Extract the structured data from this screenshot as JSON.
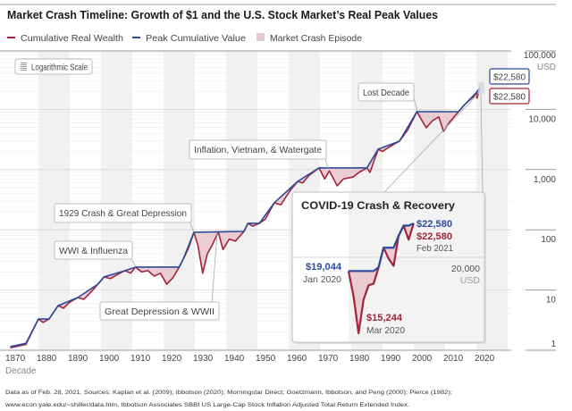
{
  "title": "Market Crash Timeline: Growth of $1 and the U.S. Stock Market’s Real Peak Values",
  "legend": [
    {
      "label": "Cumulative Real Wealth",
      "color": "#a3233a",
      "type": "line"
    },
    {
      "label": "Peak Cumulative Value",
      "color": "#2b4a9b",
      "type": "line"
    },
    {
      "label": "Market Crash Episode",
      "color": "#e8c6cd",
      "type": "swatch"
    }
  ],
  "scale_badge": {
    "label": "Logarithmic Scale",
    "icon": "lines-icon"
  },
  "annotations": {
    "lost_decade": "Lost Decade",
    "inflation": "Inflation, Vietnam, & Watergate",
    "crash_1929": "1929 Crash & Great Depression",
    "wwi": "WWI & Influenza",
    "depression_wwii": "Great Depression & WWII"
  },
  "end_labels": {
    "peak": "$22,580",
    "wealth": "$22,580"
  },
  "inset": {
    "title": "COVID-19 Crash & Recovery",
    "end_peak": "$22,580",
    "end_wealth": "$22,580",
    "end_date": "Feb 2021",
    "start_value": "$19,044",
    "start_date": "Jan 2020",
    "trough_value": "$15,244",
    "trough_date": "Mar 2020",
    "ref_value": "20,000",
    "ref_unit": "USD"
  },
  "footer": [
    "Data as of Feb. 28, 2021. Sources: Kaplan et al. (2009); Ibbotson (2020); Morningstar Direct; Goetzmann, Ibbotson, and Peng (2000); Pierce (1982);",
    "www.econ.yale.edu/~shiller/data.htm, Ibbotson Associates SBBI US Large-Cap Stock Inflation Adjusted Total Return Extended Index."
  ],
  "colors": {
    "wealth": "#a3233a",
    "peak": "#2b4a9b",
    "crash": "#e8c6cd",
    "band": "#f1f1f1"
  },
  "chart_data": {
    "type": "line",
    "title": "Market Crash Timeline: Growth of $1 and the U.S. Stock Market’s Real Peak Values",
    "xlabel": "Decade",
    "ylabel": "USD",
    "y_scale": "log",
    "xlim": [
      1870,
      2030
    ],
    "ylim": [
      1,
      100000
    ],
    "grid": true,
    "legend_position": "top-left",
    "x_ticks": [
      "1870",
      "1880",
      "1890",
      "1900",
      "1910",
      "1920",
      "1930",
      "1940",
      "1950",
      "1960",
      "1970",
      "1980",
      "1990",
      "2000",
      "2010",
      "2020"
    ],
    "y_ticks": [
      {
        "value": 100000,
        "label": "100,000"
      },
      {
        "value": 10000,
        "label": "10,000"
      },
      {
        "value": 1000,
        "label": "1,000"
      },
      {
        "value": 100,
        "label": "100"
      },
      {
        "value": 10,
        "label": "10"
      },
      {
        "value": 1,
        "label": "1"
      }
    ],
    "y_unit_label": "USD",
    "series": [
      {
        "name": "Cumulative Real Wealth",
        "x": [
          1871,
          1876,
          1880,
          1881.5,
          1883.4,
          1886.3,
          1888,
          1890,
          1892.6,
          1894.5,
          1897,
          1899,
          1901,
          1903,
          1906,
          1907.7,
          1909.5,
          1911,
          1913,
          1915,
          1917,
          1919,
          1921,
          1923,
          1925,
          1926.3,
          1928,
          1929.7,
          1931,
          1932.5,
          1934,
          1935.5,
          1937.5,
          1939,
          1941,
          1943,
          1945.7,
          1947,
          1948.5,
          1950.6,
          1952.5,
          1955.4,
          1957.5,
          1960.5,
          1962.9,
          1964.5,
          1966.5,
          1969.7,
          1971.5,
          1973,
          1975.5,
          1977.5,
          1980.5,
          1982.5,
          1985,
          1986,
          1988.6,
          1990,
          1992,
          1995.4,
          1998,
          2001,
          2003,
          2004,
          2006,
          2008,
          2009.5,
          2011.5,
          2014.3,
          2016,
          2017.5,
          2019,
          2020,
          2020.2,
          2021.1
        ],
        "y": [
          1.1,
          1.25,
          3.3,
          2.9,
          3.3,
          5.5,
          5.0,
          6.3,
          7.5,
          7.0,
          9.5,
          12.5,
          16.5,
          15.5,
          19,
          21,
          19,
          24,
          20,
          21,
          17,
          19,
          12.5,
          16,
          24,
          32.6,
          50,
          91,
          55,
          19,
          40,
          55,
          92,
          47,
          70,
          65,
          94,
          128,
          115,
          128,
          150,
          281,
          260,
          450,
          637,
          600,
          800,
          1065,
          700,
          950,
          537,
          700,
          750,
          900,
          1065,
          900,
          2180,
          2000,
          2350,
          2965,
          4500,
          9150,
          6000,
          4950,
          6500,
          7500,
          4320,
          6200,
          9150,
          11620,
          13800,
          16000,
          19044,
          15244,
          22580
        ]
      },
      {
        "name": "Peak Cumulative Value",
        "x": [
          1871,
          1876,
          1880,
          1883.4,
          1886.3,
          1892.6,
          1899,
          1901,
          1907.7,
          1911,
          1925,
          1926.3,
          1929.7,
          1945.7,
          1947,
          1950.6,
          1955.4,
          1962.9,
          1969.7,
          1985,
          1988.6,
          1995.4,
          2001,
          2014.3,
          2016,
          2020,
          2021.1
        ],
        "y": [
          1.15,
          1.3,
          3.3,
          3.3,
          5.5,
          7.5,
          12.5,
          16.5,
          21,
          24,
          24,
          32.6,
          91,
          94,
          128,
          128,
          281,
          637,
          1065,
          1065,
          2180,
          2965,
          9150,
          9150,
          11620,
          19044,
          22580
        ]
      }
    ],
    "crash_episodes": [
      "WWI & Influenza",
      "1929 Crash & Great Depression",
      "Great Depression & WWII",
      "Inflation, Vietnam, & Watergate",
      "Lost Decade",
      "COVID-19 Crash & Recovery"
    ],
    "inset": {
      "title": "COVID-19 Crash & Recovery",
      "months": [
        "Jan 2020",
        "Feb 2020",
        "Mar 2020",
        "Apr 2020",
        "May 2020",
        "Jun 2020",
        "Jul 2020",
        "Aug 2020",
        "Sep 2020",
        "Oct 2020",
        "Nov 2020",
        "Dec 2020",
        "Jan 2021",
        "Feb 2021"
      ],
      "wealth": [
        19044,
        17400,
        15244,
        17200,
        18100,
        18200,
        19300,
        20700,
        19900,
        19400,
        21600,
        22400,
        21300,
        22580
      ],
      "peak": [
        19044,
        19044,
        19044,
        19044,
        19044,
        19044,
        19300,
        20700,
        20700,
        20700,
        21600,
        22400,
        22400,
        22580
      ],
      "reference_line": 20000
    }
  }
}
